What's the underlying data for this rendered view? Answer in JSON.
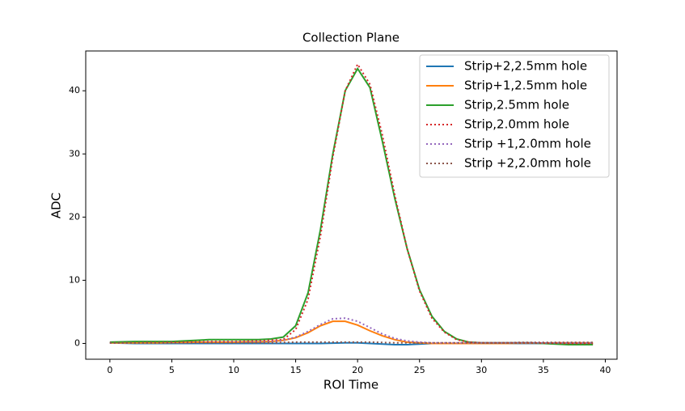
{
  "chart_data": {
    "type": "line",
    "title": "Collection Plane",
    "x_label": "ROI Time",
    "y_label": "ADC",
    "x": [
      0,
      1,
      2,
      3,
      4,
      5,
      6,
      7,
      8,
      9,
      10,
      11,
      12,
      13,
      14,
      15,
      16,
      17,
      18,
      19,
      20,
      21,
      22,
      23,
      24,
      25,
      26,
      27,
      28,
      29,
      30,
      31,
      32,
      33,
      34,
      35,
      36,
      37,
      38,
      39
    ],
    "xlim": [
      -1.95,
      40.95
    ],
    "xticks": [
      0,
      5,
      10,
      15,
      20,
      25,
      30,
      35,
      40
    ],
    "ylim": [
      -2.5,
      46.3
    ],
    "yticks": [
      0,
      10,
      20,
      30,
      40
    ],
    "legend": "upper right",
    "series": [
      {
        "name": "Strip+2,2.5mm hole",
        "color": "#1f77b4",
        "linestyle": "solid",
        "values": [
          0.1,
          0.05,
          0,
          0,
          0,
          0,
          0,
          0,
          0,
          0,
          0,
          0,
          0,
          0,
          0,
          0,
          0,
          0,
          0.05,
          0.1,
          0.1,
          0,
          -0.1,
          -0.2,
          -0.2,
          -0.1,
          0,
          0,
          0,
          0,
          0,
          0,
          0,
          0,
          0,
          0,
          0,
          0,
          0,
          0
        ]
      },
      {
        "name": "Strip+1,2.5mm hole",
        "color": "#ff7f0e",
        "linestyle": "solid",
        "values": [
          0.1,
          0.1,
          0.1,
          0.1,
          0.1,
          0.15,
          0.15,
          0.2,
          0.2,
          0.2,
          0.2,
          0.25,
          0.25,
          0.3,
          0.5,
          0.9,
          1.7,
          2.8,
          3.5,
          3.5,
          2.9,
          2.0,
          1.2,
          0.6,
          0.2,
          0.1,
          0,
          0,
          0,
          0,
          0,
          0,
          0,
          0.05,
          0.05,
          0.05,
          0.1,
          0.1,
          0.1,
          0.1
        ]
      },
      {
        "name": "Strip,2.5mm hole",
        "color": "#2ca02c",
        "linestyle": "solid",
        "values": [
          0.2,
          0.25,
          0.3,
          0.3,
          0.3,
          0.3,
          0.4,
          0.5,
          0.6,
          0.6,
          0.6,
          0.6,
          0.6,
          0.7,
          1.0,
          2.8,
          8,
          18,
          30,
          40,
          43.5,
          40.5,
          32,
          23,
          15,
          8.5,
          4.3,
          1.9,
          0.7,
          0.2,
          0.1,
          0.1,
          0.1,
          0.1,
          0.1,
          0,
          -0.1,
          -0.2,
          -0.2,
          -0.2
        ]
      },
      {
        "name": "Strip,2.0mm hole",
        "color": "#d62728",
        "linestyle": "dotted",
        "values": [
          0.1,
          0.1,
          0.1,
          0.15,
          0.15,
          0.2,
          0.2,
          0.25,
          0.3,
          0.3,
          0.3,
          0.35,
          0.4,
          0.5,
          0.6,
          2.2,
          7,
          17,
          29.5,
          40,
          44.2,
          41,
          33,
          23.5,
          15,
          8.3,
          4,
          1.8,
          0.6,
          0.2,
          0.1,
          0.1,
          0.1,
          0.1,
          0.1,
          0.05,
          0.05,
          0,
          0,
          0
        ]
      },
      {
        "name": "Strip +1,2.0mm hole",
        "color": "#9467bd",
        "linestyle": "dotted",
        "values": [
          0.1,
          0.1,
          0.1,
          0.1,
          0.1,
          0.1,
          0.1,
          0.15,
          0.15,
          0.15,
          0.2,
          0.2,
          0.25,
          0.3,
          0.5,
          1.0,
          1.9,
          3.0,
          3.9,
          4.0,
          3.5,
          2.5,
          1.5,
          0.8,
          0.4,
          0.2,
          0.1,
          0.1,
          0.1,
          0.1,
          0.1,
          0.1,
          0.1,
          0.1,
          0.1,
          0.1,
          0.1,
          0.1,
          0.1,
          0.1
        ]
      },
      {
        "name": "Strip +2,2.0mm hole",
        "color": "#8c564b",
        "linestyle": "dotted",
        "values": [
          0.1,
          0.1,
          0.1,
          0.1,
          0.1,
          0.1,
          0.1,
          0.1,
          0.1,
          0.1,
          0.1,
          0.1,
          0.1,
          0.1,
          0.15,
          0.2,
          0.2,
          0.2,
          0.2,
          0.2,
          0.2,
          0.2,
          0.15,
          0.1,
          0.1,
          0.1,
          0.1,
          0.1,
          0.1,
          0.1,
          0.1,
          0.1,
          0.1,
          0.15,
          0.15,
          0.15,
          0.15,
          0.15,
          0.15,
          0.15
        ]
      }
    ]
  }
}
